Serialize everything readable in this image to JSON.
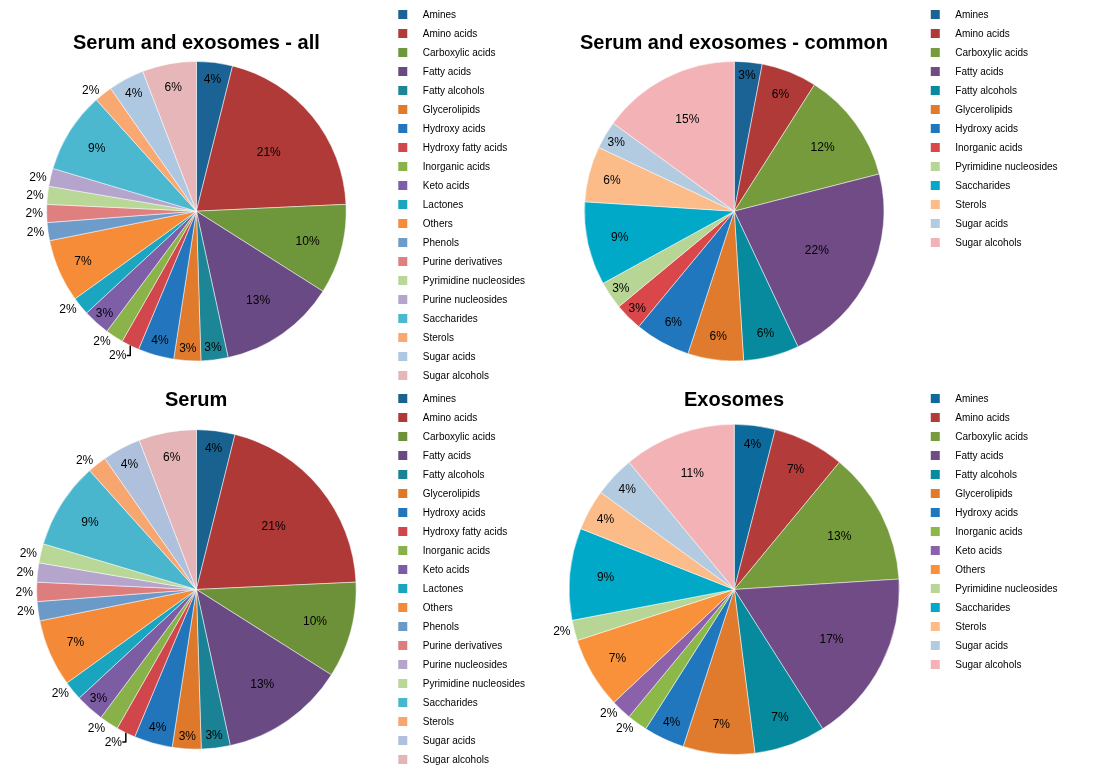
{
  "chart_data": [
    {
      "type": "pie",
      "title": "Serum and exosomes - all",
      "legend": "right",
      "data_labels": true,
      "categories": [
        "Amines",
        "Amino acids",
        "Carboxylic acids",
        "Fatty acids",
        "Fatty alcohols",
        "Glycerolipids",
        "Hydroxy acids",
        "Hydroxy fatty acids",
        "Inorganic acids",
        "Keto acids",
        "Lactones",
        "Others",
        "Phenols",
        "Purine derivatives",
        "Pyrimidine nucleosides",
        "Purine nucleosides",
        "Saccharides",
        "Sterols",
        "Sugar acids",
        "Sugar alcohols"
      ],
      "values": [
        4,
        21,
        10,
        13,
        3,
        3,
        4,
        2,
        2,
        3,
        2,
        7,
        2,
        2,
        2,
        2,
        9,
        2,
        4,
        6
      ],
      "value_labels": [
        "4%",
        "21%",
        "10%",
        "13%",
        "3%",
        "3%",
        "4%",
        "2%",
        "2%",
        "3%",
        "2%",
        "7%",
        "2%",
        "2%",
        "2%",
        "2%",
        "9%",
        "2%",
        "4%",
        "6%"
      ],
      "colors": [
        "#1b6395",
        "#b03a37",
        "#6e963a",
        "#6a4a84",
        "#1c8596",
        "#e07a2c",
        "#2376bd",
        "#d2474c",
        "#8ab44a",
        "#7e5ea6",
        "#1aa6c1",
        "#f68c38",
        "#6e9cca",
        "#e07f80",
        "#b9d797",
        "#b5a5cd",
        "#4bb8d0",
        "#f9a872",
        "#afc8e1",
        "#e6b6b8"
      ]
    },
    {
      "type": "pie",
      "title": "Serum and exosomes - common",
      "legend": "right",
      "data_labels": true,
      "categories": [
        "Amines",
        "Amino acids",
        "Carboxylic acids",
        "Fatty acids",
        "Fatty alcohols",
        "Glycerolipids",
        "Hydroxy acids",
        "Inorganic acids",
        "Pyrimidine nucleosides",
        "Saccharides",
        "Sterols",
        "Sugar acids",
        "Sugar alcohols"
      ],
      "values": [
        3,
        6,
        12,
        22,
        6,
        6,
        6,
        3,
        3,
        9,
        6,
        3,
        15
      ],
      "value_labels": [
        "3%",
        "6%",
        "12%",
        "22%",
        "6%",
        "6%",
        "6%",
        "3%",
        "3%",
        "9%",
        "6%",
        "3%",
        "15%"
      ],
      "colors": [
        "#1b6395",
        "#b03a37",
        "#759b3c",
        "#704b86",
        "#078a9e",
        "#e07a2c",
        "#2177be",
        "#d9474b",
        "#b7d696",
        "#00a9c7",
        "#fbbc8a",
        "#b3cbe1",
        "#f3b3b6"
      ]
    },
    {
      "type": "pie",
      "title": "Serum",
      "legend": "right",
      "data_labels": true,
      "categories": [
        "Amines",
        "Amino acids",
        "Carboxylic acids",
        "Fatty acids",
        "Fatty alcohols",
        "Glycerolipids",
        "Hydroxy acids",
        "Hydroxy fatty acids",
        "Inorganic acids",
        "Keto acids",
        "Lactones",
        "Others",
        "Phenols",
        "Purine derivatives",
        "Purine nucleosides",
        "Pyrimidine nucleosides",
        "Saccharides",
        "Sterols",
        "Sugar acids",
        "Sugar alcohols"
      ],
      "values": [
        4,
        21,
        10,
        13,
        3,
        3,
        4,
        2,
        2,
        3,
        2,
        7,
        2,
        2,
        2,
        2,
        9,
        2,
        4,
        6
      ],
      "value_labels": [
        "4%",
        "21%",
        "10%",
        "13%",
        "3%",
        "3%",
        "4%",
        "2%",
        "2%",
        "3%",
        "2%",
        "7%",
        "2%",
        "2%",
        "2%",
        "2%",
        "9%",
        "2%",
        "4%",
        "6%"
      ],
      "colors": [
        "#19628f",
        "#ae3936",
        "#6c9139",
        "#694a83",
        "#1a8294",
        "#de782b",
        "#2275bb",
        "#d0464b",
        "#88b249",
        "#7c5da4",
        "#19a4bf",
        "#f48a37",
        "#6c9ac8",
        "#de7d7e",
        "#b5a5cd",
        "#b9d797",
        "#49b6ce",
        "#f7a670",
        "#afc0dd",
        "#e4b4b6"
      ]
    },
    {
      "type": "pie",
      "title": "Exosomes",
      "legend": "right",
      "data_labels": true,
      "categories": [
        "Amines",
        "Amino acids",
        "Carboxylic acids",
        "Fatty acids",
        "Fatty alcohols",
        "Glycerolipids",
        "Hydroxy acids",
        "Inorganic acids",
        "Keto acids",
        "Others",
        "Pyrimidine nucleosides",
        "Saccharides",
        "Sterols",
        "Sugar acids",
        "Sugar alcohols"
      ],
      "values": [
        4,
        7,
        13,
        17,
        7,
        7,
        4,
        2,
        2,
        7,
        2,
        9,
        4,
        4,
        11
      ],
      "value_labels": [
        "4%",
        "7%",
        "13%",
        "17%",
        "7%",
        "7%",
        "4%",
        "2%",
        "2%",
        "7%",
        "2%",
        "9%",
        "4%",
        "4%",
        "11%"
      ],
      "colors": [
        "#0c6a9c",
        "#b33b3a",
        "#759b3c",
        "#704b86",
        "#078a9e",
        "#e07a2c",
        "#2177be",
        "#8bb849",
        "#8c61ab",
        "#f8913a",
        "#b7d696",
        "#00a9c7",
        "#fbbc8a",
        "#b3cbe1",
        "#f3b3b6"
      ]
    }
  ]
}
